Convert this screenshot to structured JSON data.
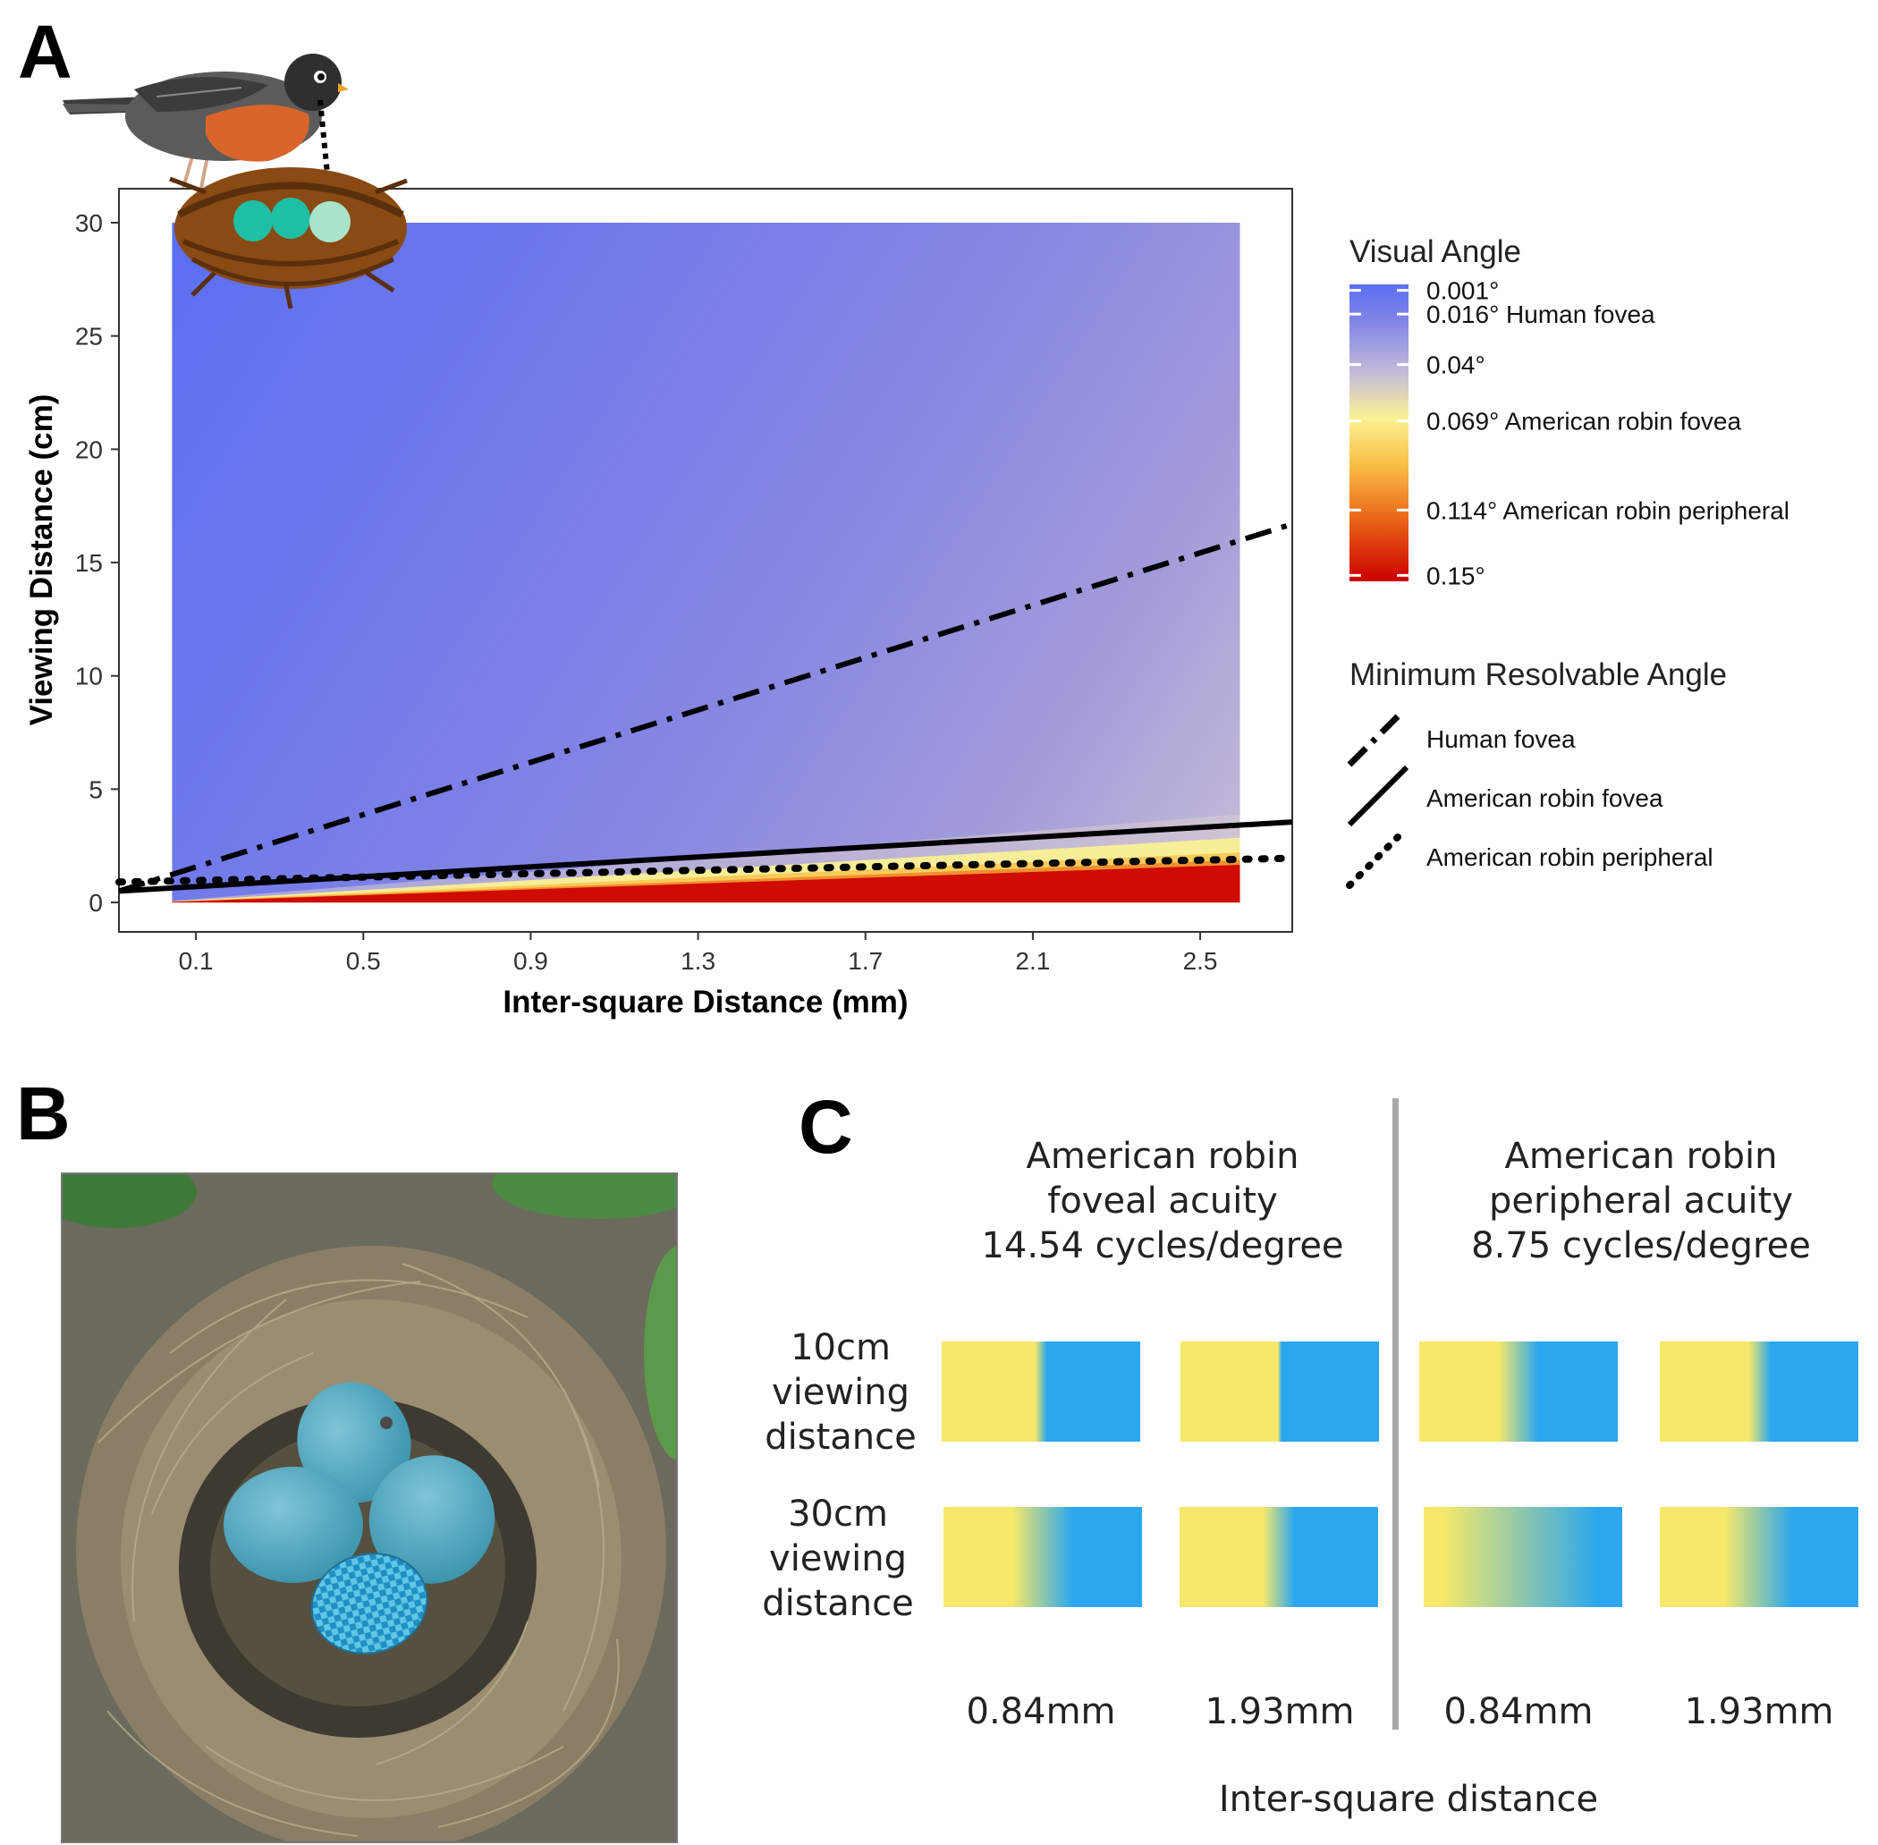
{
  "panel_labels": [
    "A",
    "B",
    "C"
  ],
  "chart_data": {
    "type": "heatmap",
    "xlabel": "Inter-square Distance (mm)",
    "ylabel": "Viewing Distance (cm)",
    "x_ticks": [
      0.1,
      0.5,
      0.9,
      1.3,
      1.7,
      2.1,
      2.5
    ],
    "y_ticks": [
      0,
      5,
      10,
      15,
      20,
      25,
      30
    ],
    "xlim": [
      -0.084,
      2.72
    ],
    "ylim": [
      -1.3,
      31.5
    ],
    "fill_extent": {
      "x": [
        0.043,
        2.595
      ],
      "y": [
        0,
        30
      ]
    },
    "grid": false,
    "legend_position": "right",
    "color_legend": {
      "title": "Visual Angle",
      "breaks": [
        "0.001°",
        "0.016° Human fovea",
        "0.04°",
        "0.069° American robin fovea",
        "0.114° American robin peripheral",
        "0.15°"
      ],
      "colors": [
        "#5b6ef3",
        "#8c8ae0",
        "#c4bcd8",
        "#fbf293",
        "#f08020",
        "#cc0000"
      ]
    },
    "line_legend": {
      "title": "Minimum Resolvable Angle",
      "entries": [
        {
          "label": "Human fovea",
          "style": "dashdot"
        },
        {
          "label": "American robin fovea",
          "style": "solid"
        },
        {
          "label": "American robin peripheral",
          "style": "dotted"
        }
      ]
    },
    "series": [
      {
        "name": "Human fovea",
        "style": "dashdot",
        "x": [
          -0.084,
          2.72
        ],
        "y": [
          0.5,
          16.7
        ]
      },
      {
        "name": "American robin fovea",
        "style": "solid",
        "x": [
          -0.084,
          2.72
        ],
        "y": [
          0.5,
          3.55
        ]
      },
      {
        "name": "American robin peripheral",
        "style": "dotted",
        "x": [
          -0.084,
          2.72
        ],
        "y": [
          0.9,
          1.95
        ]
      }
    ]
  },
  "panel_c": {
    "left_header": [
      "American robin",
      "foveal acuity",
      "14.54 cycles/degree"
    ],
    "right_header": [
      "American robin",
      "peripheral acuity",
      "8.75 cycles/degree"
    ],
    "row_labels": [
      [
        "10cm",
        "viewing",
        "distance"
      ],
      [
        "30cm",
        "viewing",
        "distance"
      ]
    ],
    "column_labels": [
      "0.84mm",
      "1.93mm",
      "0.84mm",
      "1.93mm"
    ],
    "footer": "Inter-square distance",
    "colors": {
      "yellow": "#f5e86a",
      "blue": "#2aa7ee",
      "divider": "#a9a9a9"
    }
  }
}
